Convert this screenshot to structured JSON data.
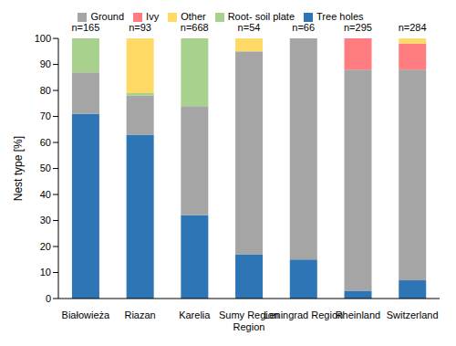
{
  "chart_data": {
    "type": "bar",
    "stacked": true,
    "categories": [
      "Białowieża",
      "Riazan",
      "Karelia",
      "Sumy Region Region",
      "Leningrad Region",
      "Rheinland",
      "Switzerland"
    ],
    "annotations": [
      "n=165",
      "n=93",
      "n=668",
      "n=54",
      "n=66",
      "n=295",
      "n=284"
    ],
    "y_label": "Nest type [%]",
    "ylim": [
      0,
      100
    ],
    "yticks": [
      0,
      10,
      20,
      30,
      40,
      50,
      60,
      70,
      80,
      90,
      100
    ],
    "grid": false,
    "legend": "top",
    "series": [
      {
        "name": "Tree holes",
        "color": "#2e75b6",
        "values": [
          71,
          63,
          32,
          17,
          15,
          3,
          7
        ]
      },
      {
        "name": "Ground",
        "color": "#a5a5a5",
        "values": [
          16,
          15,
          42,
          78,
          85,
          85,
          81
        ]
      },
      {
        "name": "Root- soil plate",
        "color": "#a9d18e",
        "values": [
          13,
          1,
          26,
          0,
          0,
          0,
          0
        ]
      },
      {
        "name": "Ivy",
        "color": "#ff7c80",
        "values": [
          0,
          0,
          0,
          0,
          0,
          12,
          10
        ]
      },
      {
        "name": "Other",
        "color": "#ffd966",
        "values": [
          0,
          21,
          0,
          5,
          0,
          0,
          2
        ]
      }
    ]
  }
}
